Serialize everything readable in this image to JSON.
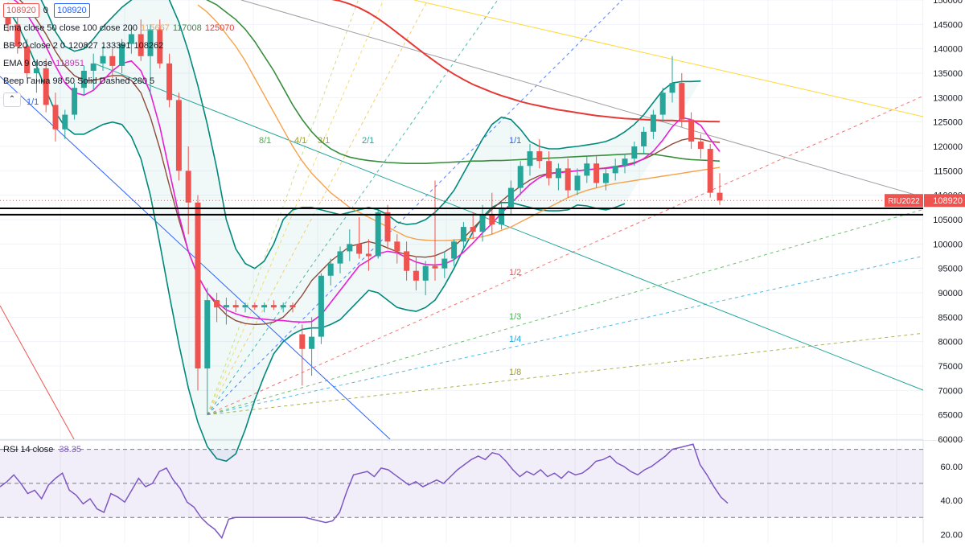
{
  "chart_data": [
    {
      "type": "candlestick",
      "symbol": "RIU2022",
      "last_price": "108920",
      "ylim": [
        60000,
        150000
      ],
      "price_ticks": [
        "150000",
        "145000",
        "140000",
        "135000",
        "130000",
        "125000",
        "120000",
        "115000",
        "110000",
        "105000",
        "100000",
        "95000",
        "90000",
        "85000",
        "80000",
        "75000",
        "70000",
        "65000",
        "60000"
      ],
      "header_badges": [
        "108920",
        "0",
        "108920"
      ],
      "legend": [
        {
          "name": "Ema close 50 close 100 close 200",
          "values": [
            {
              "text": "115667",
              "color": "#f7a24a"
            },
            {
              "text": "117008",
              "color": "#388e3c"
            },
            {
              "text": "125070",
              "color": "#e53935"
            }
          ]
        },
        {
          "name": "BB 20 close 2 0",
          "values": [
            {
              "text": "120827",
              "color": "#131722"
            },
            {
              "text": "133391",
              "color": "#131722"
            },
            {
              "text": "108262",
              "color": "#131722"
            }
          ]
        },
        {
          "name": "EMA 9 close",
          "values": [
            {
              "text": "118951",
              "color": "#e91ed6"
            }
          ]
        },
        {
          "name": "Веер Ганна 98 50 Solid Dashed 280 5",
          "values": []
        }
      ],
      "candles": [
        {
          "o": 147000,
          "h": 149500,
          "l": 143500,
          "c": 145000
        },
        {
          "o": 145000,
          "h": 146500,
          "l": 139000,
          "c": 140500
        },
        {
          "o": 140500,
          "h": 142000,
          "l": 134000,
          "c": 135000
        },
        {
          "o": 135000,
          "h": 137500,
          "l": 131000,
          "c": 136000
        },
        {
          "o": 136000,
          "h": 138000,
          "l": 127000,
          "c": 128500
        },
        {
          "o": 128500,
          "h": 131000,
          "l": 121000,
          "c": 123500
        },
        {
          "o": 123500,
          "h": 127500,
          "l": 121500,
          "c": 126500
        },
        {
          "o": 126500,
          "h": 133000,
          "l": 125500,
          "c": 132000
        },
        {
          "o": 132000,
          "h": 136500,
          "l": 130500,
          "c": 135500
        },
        {
          "o": 135500,
          "h": 139000,
          "l": 131500,
          "c": 137000
        },
        {
          "o": 137000,
          "h": 140500,
          "l": 135500,
          "c": 138500
        },
        {
          "o": 138500,
          "h": 140000,
          "l": 134000,
          "c": 136500
        },
        {
          "o": 136500,
          "h": 142000,
          "l": 135000,
          "c": 141000
        },
        {
          "o": 141000,
          "h": 144500,
          "l": 139000,
          "c": 143000
        },
        {
          "o": 143000,
          "h": 146000,
          "l": 137500,
          "c": 138500
        },
        {
          "o": 138500,
          "h": 145000,
          "l": 130500,
          "c": 144000
        },
        {
          "o": 144000,
          "h": 146000,
          "l": 136000,
          "c": 137000
        },
        {
          "o": 137000,
          "h": 139000,
          "l": 128000,
          "c": 129500
        },
        {
          "o": 129500,
          "h": 131000,
          "l": 113000,
          "c": 115000
        },
        {
          "o": 115000,
          "h": 120000,
          "l": 102000,
          "c": 108500
        },
        {
          "o": 108500,
          "h": 110000,
          "l": 70000,
          "c": 74500
        },
        {
          "o": 74500,
          "h": 91000,
          "l": 65000,
          "c": 88500
        },
        {
          "o": 88500,
          "h": 90000,
          "l": 84000,
          "c": 87000
        },
        {
          "o": 87000,
          "h": 89000,
          "l": 83500,
          "c": 87500
        },
        {
          "o": 87500,
          "h": 88500,
          "l": 86000,
          "c": 87000
        },
        {
          "o": 87000,
          "h": 88000,
          "l": 86000,
          "c": 87500
        },
        {
          "o": 87500,
          "h": 88000,
          "l": 86500,
          "c": 87000
        },
        {
          "o": 87000,
          "h": 88000,
          "l": 86000,
          "c": 87500
        },
        {
          "o": 87500,
          "h": 88500,
          "l": 86500,
          "c": 87000
        },
        {
          "o": 87000,
          "h": 88000,
          "l": 86000,
          "c": 87500
        },
        {
          "o": 87500,
          "h": 88000,
          "l": 86000,
          "c": 87000
        },
        {
          "o": 81500,
          "h": 83500,
          "l": 71000,
          "c": 78500
        },
        {
          "o": 78500,
          "h": 85000,
          "l": 73000,
          "c": 81000
        },
        {
          "o": 81000,
          "h": 94000,
          "l": 79500,
          "c": 93500
        },
        {
          "o": 93500,
          "h": 97000,
          "l": 91500,
          "c": 96000
        },
        {
          "o": 96000,
          "h": 99500,
          "l": 94000,
          "c": 98500
        },
        {
          "o": 98500,
          "h": 103000,
          "l": 96500,
          "c": 100000
        },
        {
          "o": 100000,
          "h": 105500,
          "l": 97000,
          "c": 98000
        },
        {
          "o": 98000,
          "h": 101000,
          "l": 94500,
          "c": 97500
        },
        {
          "o": 97500,
          "h": 107000,
          "l": 97000,
          "c": 106500
        },
        {
          "o": 106500,
          "h": 108000,
          "l": 99000,
          "c": 100500
        },
        {
          "o": 100500,
          "h": 102000,
          "l": 96000,
          "c": 98500
        },
        {
          "o": 98500,
          "h": 100500,
          "l": 92500,
          "c": 94500
        },
        {
          "o": 94500,
          "h": 97500,
          "l": 90500,
          "c": 92500
        },
        {
          "o": 92500,
          "h": 96500,
          "l": 89500,
          "c": 95500
        },
        {
          "o": 95500,
          "h": 113000,
          "l": 92500,
          "c": 95000
        },
        {
          "o": 95000,
          "h": 98500,
          "l": 93000,
          "c": 97000
        },
        {
          "o": 97000,
          "h": 101000,
          "l": 95500,
          "c": 100500
        },
        {
          "o": 100500,
          "h": 104500,
          "l": 99000,
          "c": 103500
        },
        {
          "o": 103500,
          "h": 106500,
          "l": 101000,
          "c": 102500
        },
        {
          "o": 102500,
          "h": 108000,
          "l": 100500,
          "c": 106000
        },
        {
          "o": 106000,
          "h": 110500,
          "l": 102000,
          "c": 104000
        },
        {
          "o": 104000,
          "h": 108500,
          "l": 103000,
          "c": 107500
        },
        {
          "o": 107500,
          "h": 113000,
          "l": 106000,
          "c": 111500
        },
        {
          "o": 111500,
          "h": 117000,
          "l": 110000,
          "c": 116000
        },
        {
          "o": 116000,
          "h": 120500,
          "l": 114000,
          "c": 119000
        },
        {
          "o": 119000,
          "h": 121500,
          "l": 115500,
          "c": 117000
        },
        {
          "o": 117000,
          "h": 119000,
          "l": 112000,
          "c": 113500
        },
        {
          "o": 113500,
          "h": 116500,
          "l": 111000,
          "c": 115500
        },
        {
          "o": 115500,
          "h": 117500,
          "l": 109500,
          "c": 111000
        },
        {
          "o": 111000,
          "h": 115500,
          "l": 110000,
          "c": 114000
        },
        {
          "o": 114000,
          "h": 118000,
          "l": 112500,
          "c": 116500
        },
        {
          "o": 116500,
          "h": 118000,
          "l": 111500,
          "c": 112500
        },
        {
          "o": 112500,
          "h": 115500,
          "l": 111000,
          "c": 114500
        },
        {
          "o": 114500,
          "h": 117500,
          "l": 113000,
          "c": 116000
        },
        {
          "o": 116000,
          "h": 118500,
          "l": 114500,
          "c": 117500
        },
        {
          "o": 117500,
          "h": 121000,
          "l": 116000,
          "c": 120000
        },
        {
          "o": 120000,
          "h": 124000,
          "l": 118500,
          "c": 123000
        },
        {
          "o": 123000,
          "h": 127500,
          "l": 121500,
          "c": 126500
        },
        {
          "o": 126500,
          "h": 132000,
          "l": 125000,
          "c": 131000
        },
        {
          "o": 131000,
          "h": 138500,
          "l": 129000,
          "c": 133000
        },
        {
          "o": 133000,
          "h": 135000,
          "l": 124000,
          "c": 125500
        },
        {
          "o": 125500,
          "h": 127000,
          "l": 119500,
          "c": 121000
        },
        {
          "o": 121000,
          "h": 122500,
          "l": 117500,
          "c": 119500
        },
        {
          "o": 119500,
          "h": 120500,
          "l": 109500,
          "c": 110500
        },
        {
          "o": 110500,
          "h": 114500,
          "l": 108000,
          "c": 108920
        }
      ],
      "ema50": [
        149000,
        147500,
        145500,
        143000,
        140500,
        137500,
        134000,
        130500,
        127000,
        123500,
        120000,
        117000,
        114500,
        112500,
        110500,
        109000,
        107500,
        106500,
        105500,
        104500,
        103500,
        102500,
        101500,
        101000,
        100800,
        100700,
        100700,
        100800,
        101000,
        101200,
        101500,
        102000,
        102800,
        103500,
        104500,
        105500,
        106500,
        107500,
        108500,
        109500,
        110300,
        111000,
        111500,
        112000,
        112400,
        112700,
        113000,
        113300,
        113600,
        113900,
        114200,
        114500,
        114800,
        115100,
        115400,
        115700
      ],
      "ema100": [
        151000,
        150000,
        149000,
        147500,
        146000,
        144000,
        141500,
        138500,
        135500,
        132000,
        128500,
        125500,
        123000,
        121000,
        119500,
        118500,
        117800,
        117400,
        117100,
        116900,
        116700,
        116600,
        116500,
        116500,
        116500,
        116600,
        116700,
        116800,
        116900,
        117000,
        117000,
        117100,
        117100,
        117200,
        117300,
        117400,
        117500,
        117600,
        117700,
        117800,
        117900,
        118000,
        118100,
        118200,
        118300,
        118400,
        118500,
        118500,
        118400,
        118100,
        117800,
        117500,
        117300,
        117200,
        117100,
        117008
      ],
      "ema200": [
        150500,
        150200,
        149800,
        149200,
        148400,
        147400,
        146200,
        144800,
        143300,
        141800,
        140300,
        138800,
        137400,
        136000,
        134800,
        133700,
        132700,
        131900,
        131100,
        130400,
        129800,
        129200,
        128700,
        128300,
        127900,
        127500,
        127200,
        126900,
        126600,
        126300,
        126100,
        125900,
        125700,
        125600,
        125500,
        125400,
        125300,
        125300,
        125200,
        125200,
        125150,
        125100,
        125070
      ],
      "ema9": [
        151000,
        149500,
        147000,
        144000,
        140500,
        136500,
        133000,
        131000,
        130500,
        131500,
        133500,
        135500,
        137000,
        137500,
        135500,
        131000,
        124000,
        115000,
        106000,
        98500,
        93500,
        90000,
        88000,
        86500,
        85700,
        85100,
        84800,
        84600,
        84400,
        84300,
        84100,
        84000,
        84100,
        85500,
        88000,
        90500,
        93000,
        95500,
        96700,
        98000,
        98500,
        98200,
        97200,
        96300,
        95800,
        95700,
        95900,
        96800,
        98300,
        100200,
        102300,
        104200,
        106300,
        108300,
        110300,
        112200,
        113600,
        114400,
        114600,
        114800,
        115000,
        115200,
        115400,
        115500,
        115700,
        116000,
        116500,
        117500,
        119000,
        121300,
        124000,
        125900,
        125500,
        124300,
        121500,
        118951
      ],
      "bb_basis": [
        152000,
        150500,
        148500,
        146000,
        143000,
        139500,
        136500,
        134500,
        133500,
        133500,
        134000,
        134500,
        134500,
        133500,
        131000,
        126000,
        119500,
        112000,
        105000,
        98500,
        93500,
        90000,
        87500,
        85500,
        84300,
        83700,
        83500,
        83600,
        84000,
        85000,
        87000,
        89500,
        92500,
        94500,
        96500,
        98000,
        99500,
        100000,
        100500,
        100000,
        99200,
        98400,
        97800,
        97400,
        97300,
        97600,
        98400,
        99600,
        101200,
        103200,
        105200,
        107100,
        108800,
        110400,
        111800,
        113100,
        114000,
        114500,
        114700,
        114900,
        115000,
        115200,
        115400,
        115600,
        115900,
        116200,
        116700,
        117400,
        118300,
        119400,
        120500,
        121300,
        121700,
        121500,
        121000,
        120827
      ],
      "bb_upper": [
        160000,
        158000,
        155500,
        152000,
        148000,
        143500,
        140500,
        139500,
        140000,
        142000,
        144500,
        146500,
        148500,
        150000,
        152000,
        153000,
        152500,
        150000,
        145500,
        139500,
        132500,
        124500,
        115500,
        105000,
        99000,
        96000,
        95000,
        96500,
        100000,
        105000,
        107000,
        107500,
        107500,
        107000,
        106500,
        106000,
        106500,
        107000,
        107500,
        107000,
        106000,
        104500,
        104000,
        104200,
        105000,
        106500,
        108500,
        111000,
        114500,
        118000,
        121500,
        124500,
        126000,
        125500,
        123500,
        121000,
        120000,
        119500,
        119500,
        119800,
        120000,
        120300,
        120600,
        121000,
        121800,
        123000,
        124500,
        126500,
        129000,
        131500,
        133000,
        133300,
        133300,
        133391
      ],
      "bb_lower": [
        148000,
        145000,
        141000,
        136500,
        131500,
        127000,
        124000,
        122500,
        122500,
        123500,
        124500,
        125000,
        124500,
        122000,
        117500,
        110000,
        100000,
        89500,
        79500,
        70500,
        63500,
        58500,
        56000,
        55500,
        57000,
        62000,
        68000,
        73000,
        77500,
        80000,
        81500,
        82500,
        82800,
        82800,
        83500,
        84500,
        86500,
        88500,
        90500,
        90000,
        88500,
        87000,
        86500,
        86200,
        87000,
        88500,
        91500,
        95000,
        99000,
        102500,
        105500,
        107500,
        108500,
        108500,
        108000,
        107500,
        107000,
        106800,
        106800,
        107000,
        108000,
        107800,
        107300,
        107000,
        107500,
        108262
      ],
      "rsi_ticks": [
        "60.00",
        "40.00",
        "20.00"
      ],
      "rsi_ylim": [
        15,
        75
      ],
      "rsi_levels": [
        70,
        50,
        30
      ]
    },
    {
      "type": "line",
      "title": "RSI 14 close",
      "last_value": "38.35",
      "rsi_values": [
        48,
        51,
        55,
        50,
        44,
        46,
        41,
        49,
        53,
        56,
        46,
        43,
        38,
        41,
        35,
        33,
        44,
        42,
        39,
        46,
        53,
        48,
        50,
        57,
        59,
        52,
        47,
        39,
        36,
        30,
        26,
        23,
        18,
        29,
        30,
        30,
        30,
        30,
        30,
        30,
        30,
        30,
        30,
        30,
        30,
        29,
        28,
        27,
        28,
        33,
        45,
        55,
        56,
        57,
        54,
        59,
        58,
        55,
        52,
        49,
        51,
        48,
        50,
        52,
        50,
        54,
        58,
        61,
        64,
        66,
        64,
        68,
        67,
        63,
        58,
        54,
        57,
        55,
        58,
        54,
        56,
        53,
        57,
        55,
        56,
        59,
        63,
        64,
        66,
        62,
        60,
        57,
        55,
        58,
        60,
        63,
        66,
        70,
        71,
        72,
        73,
        61,
        55,
        48,
        42,
        38.35
      ],
      "fan_labels": [
        "1/1",
        "8/1",
        "4/1",
        "3/1",
        "2/1",
        "1/1",
        "1/2",
        "1/3",
        "1/4",
        "1/8"
      ]
    }
  ]
}
